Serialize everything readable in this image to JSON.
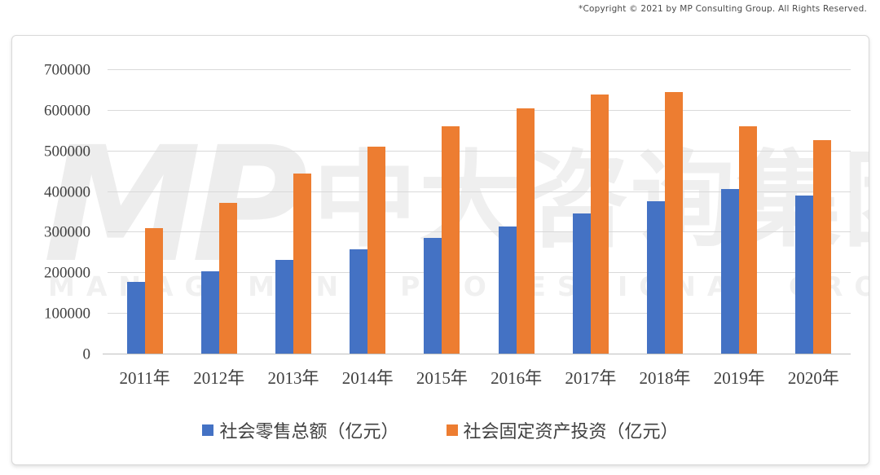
{
  "page": {
    "copyright": "*Copyright © 2021 by MP Consulting Group. All Rights Reserved."
  },
  "watermark": {
    "logo": "MP",
    "cjk_text": "中大咨询集团",
    "subtitle": "MANAGEMENT PROFESSIONAL GROUP"
  },
  "colors": {
    "series_retail": "#4472C4",
    "series_investment": "#ED7D31",
    "gridline": "#D9D9D9",
    "axis_line": "#BFBFBF",
    "axis_text": "#404040"
  },
  "chart_data": {
    "type": "bar",
    "title": "",
    "xlabel": "",
    "ylabel": "",
    "categories": [
      "2011年",
      "2012年",
      "2013年",
      "2014年",
      "2015年",
      "2016年",
      "2017年",
      "2018年",
      "2019年",
      "2020年"
    ],
    "series": [
      {
        "name": "社会零售总额（亿元）",
        "color": "#4472C4",
        "values": [
          178000,
          205000,
          232000,
          258000,
          286000,
          314000,
          347000,
          377000,
          407000,
          391000
        ]
      },
      {
        "name": "社会固定资产投资（亿元）",
        "color": "#ED7D31",
        "values": [
          311000,
          374000,
          446000,
          511000,
          561000,
          606000,
          640000,
          645000,
          561000,
          527000
        ]
      }
    ],
    "ylim": [
      0,
      700000
    ],
    "yticks": [
      0,
      100000,
      200000,
      300000,
      400000,
      500000,
      600000,
      700000
    ],
    "grid": true,
    "legend_position": "bottom"
  }
}
